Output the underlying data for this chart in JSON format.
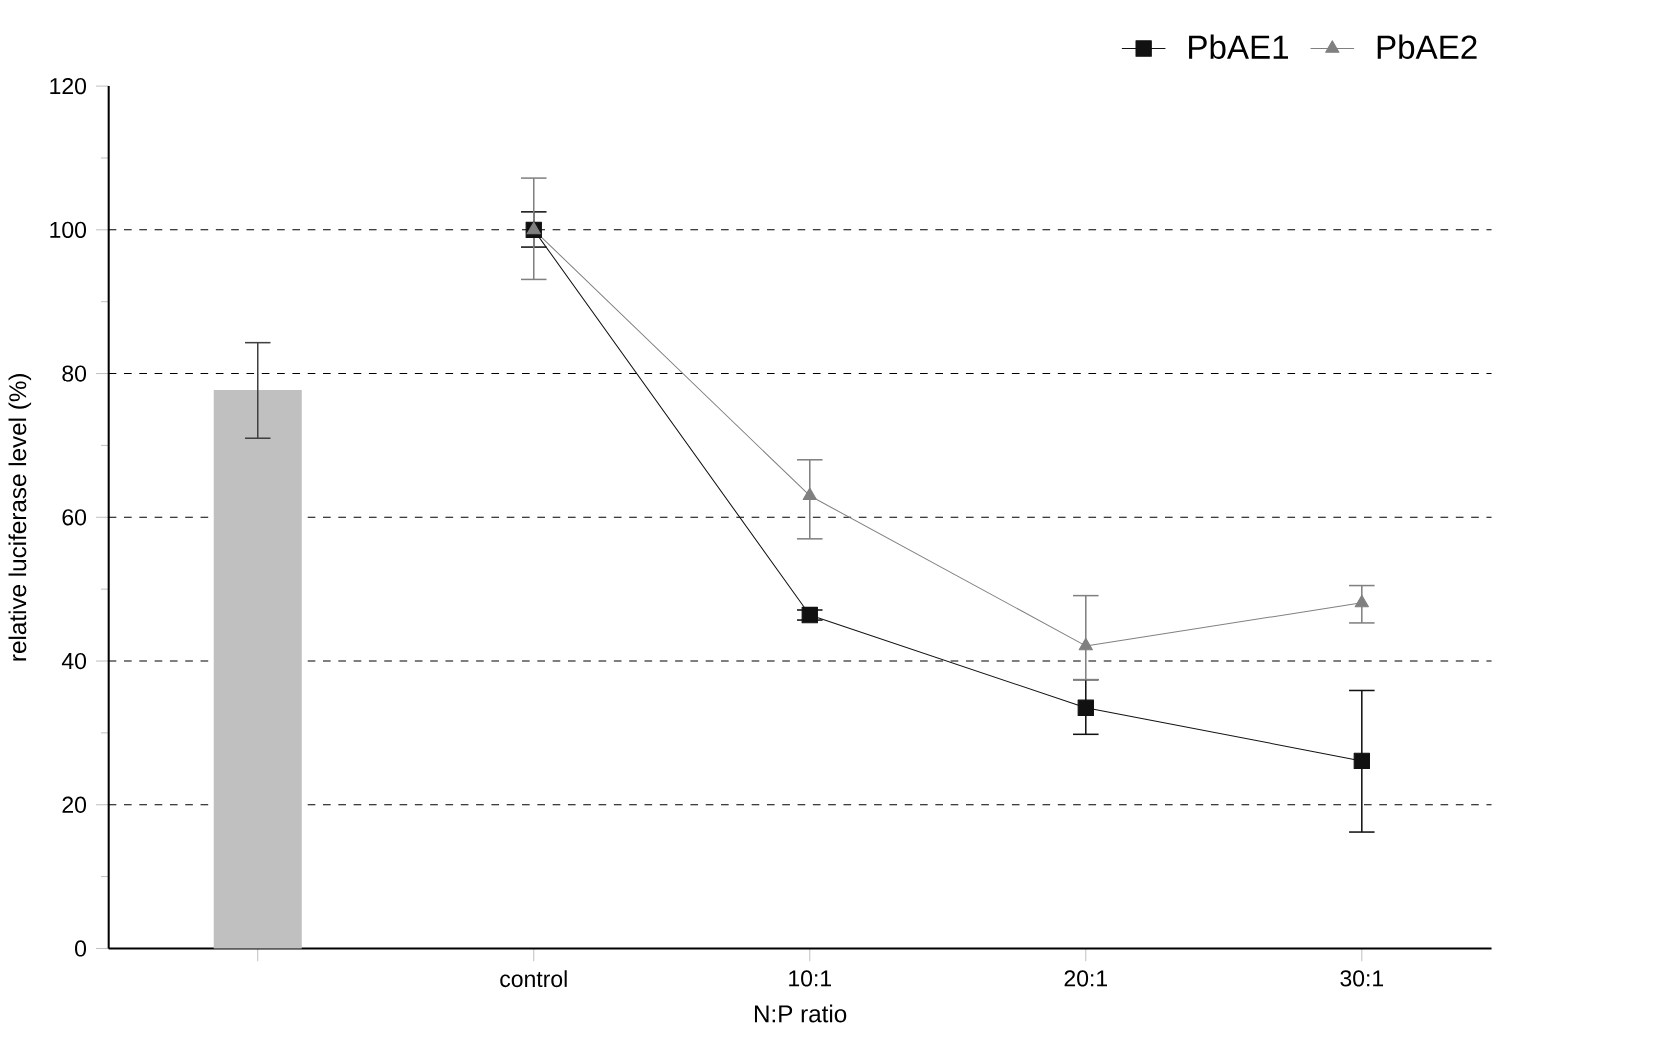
{
  "chart_data": {
    "type": "line",
    "xlabel": "N:P ratio",
    "ylabel": "relative luciferase level (%)",
    "categories": [
      null,
      "control",
      "10:1",
      "20:1",
      "30:1"
    ],
    "ylim": [
      0,
      120
    ],
    "yticks": [
      0,
      20,
      40,
      60,
      80,
      100,
      120
    ],
    "grid": "y",
    "legend": "top right",
    "series": [
      {
        "type": "bar",
        "color": "#c0c0c0",
        "values": [
          77.7,
          null,
          null,
          null,
          null
        ],
        "errors": [
          [
            71.0,
            84.3
          ],
          null,
          null,
          null,
          null
        ]
      },
      {
        "name": "PbAE1",
        "color": "#111111",
        "marker": "square",
        "values": [
          null,
          100,
          46.4,
          33.5,
          26.1
        ],
        "errors": [
          null,
          [
            97.6,
            102.5
          ],
          [
            45.7,
            47.1
          ],
          [
            29.8,
            37.4
          ],
          [
            16.2,
            35.9
          ]
        ]
      },
      {
        "name": "PbAE2",
        "color": "#808080",
        "marker": "triangle",
        "values": [
          null,
          100,
          63.0,
          42.1,
          48.1
        ],
        "errors": [
          null,
          [
            93.1,
            107.2
          ],
          [
            57.0,
            68.0
          ],
          [
            37.4,
            49.1
          ],
          [
            45.3,
            50.5
          ]
        ]
      }
    ]
  }
}
